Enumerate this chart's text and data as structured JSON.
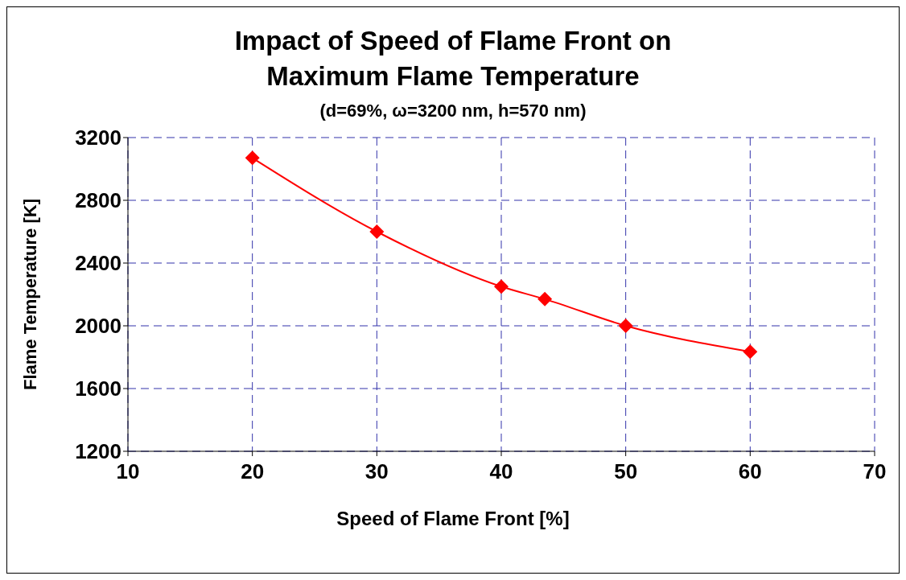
{
  "chart_data": {
    "type": "line",
    "title": "Impact of Speed of Flame Front on\nMaximum Flame Temperature",
    "subtitle": "(d=69%, ω=3200 nm, h=570 nm)",
    "xlabel": "Speed of Flame Front [%]",
    "ylabel": "Flame Temperature [K]",
    "x": [
      20,
      30,
      40,
      43.5,
      50,
      60
    ],
    "series": [
      {
        "color": "#ff0000",
        "values": [
          3070,
          2600,
          2250,
          2170,
          2000,
          1835
        ]
      }
    ],
    "xlim": [
      10,
      70
    ],
    "xticks": [
      10,
      20,
      30,
      40,
      50,
      60,
      70
    ],
    "ylim": [
      1200,
      3200
    ],
    "yticks": [
      1200,
      1600,
      2000,
      2400,
      2800,
      3200
    ],
    "grid": true,
    "marker": "diamond",
    "line_style": "solid",
    "legend": false
  }
}
